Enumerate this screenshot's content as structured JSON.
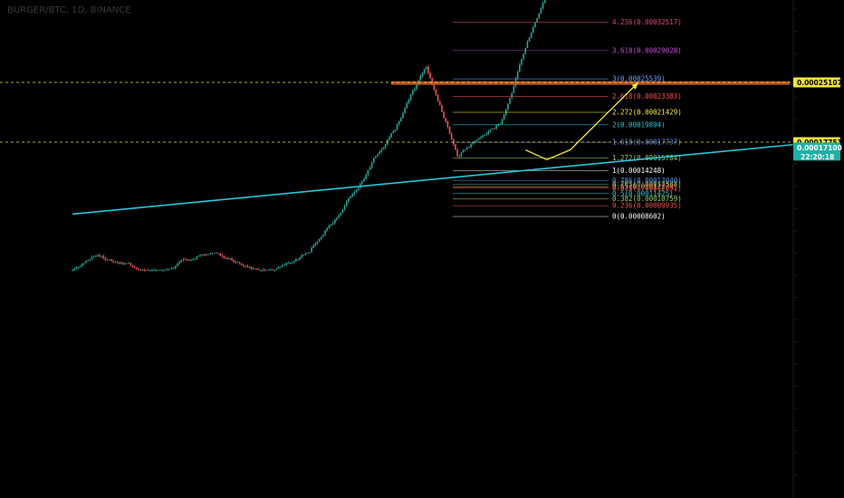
{
  "header": {
    "title": "BURGER/BTC, 1D, BINANCE"
  },
  "colors": {
    "background": "#000000",
    "trendline": "#25c7d6",
    "projection": "#f5ea3a",
    "candle_up": "#26a69a",
    "candle_down": "#ef5350",
    "resistance_zone": "#d3622a",
    "current_price_tag": "#1fb0a6",
    "price_tag": "#f2e33b"
  },
  "price_tags": [
    {
      "value": "0.00025107",
      "kind": "level"
    },
    {
      "value": "0.00017751",
      "kind": "level"
    },
    {
      "value": "0.00017100",
      "kind": "current",
      "timer": "22:20:18"
    }
  ],
  "chart_data": {
    "type": "candlestick",
    "title": "BURGER/BTC, 1D, BINANCE",
    "fib_levels": [
      {
        "ratio": "4.236",
        "price": 0.00032517,
        "label": "4.236(0.00032517)",
        "color": "#e0457a"
      },
      {
        "ratio": "3.618",
        "price": 0.00029028,
        "label": "3.618(0.00029028)",
        "color": "#c24fd6"
      },
      {
        "ratio": "3",
        "price": 0.00025539,
        "label": "3(0.00025539)",
        "color": "#6aa0ff"
      },
      {
        "ratio": "2.618",
        "price": 0.00023383,
        "label": "2.618(0.00023383)",
        "color": "#ef5350"
      },
      {
        "ratio": "2.272",
        "price": 0.00021429,
        "label": "2.272(0.00021429)",
        "color": "#f5ea3a"
      },
      {
        "ratio": "2",
        "price": 0.00019894,
        "label": "2(0.00019894)",
        "color": "#26c6da"
      },
      {
        "ratio": "1.618",
        "price": 0.00017737,
        "label": "1.618(0.00017737)",
        "color": "#5b8def"
      },
      {
        "ratio": "1.272",
        "price": 0.00015784,
        "label": "1.272(0.00015784)",
        "color": "#9ccc65"
      },
      {
        "ratio": "1",
        "price": 0.00014248,
        "label": "1(0.00014248)",
        "color": "#ffffff"
      },
      {
        "ratio": "0.786",
        "price": 0.0001304,
        "label": "0.786(0.00013040)",
        "color": "#5b8def"
      },
      {
        "ratio": "0.705",
        "price": 0.00012588,
        "label": "0.705(0.00012588)",
        "color": "#66bb6a"
      },
      {
        "ratio": "0.65",
        "price": 0.00012279,
        "label": "0.65(0.00012279)",
        "color": "#ffb74d"
      },
      {
        "ratio": "0.618",
        "price": 0.00012091,
        "label": "0.618(0.00012091)",
        "color": "#ef5350"
      },
      {
        "ratio": "0.5",
        "price": 0.00011425,
        "label": "0.5(0.00011425)",
        "color": "#26c6da"
      },
      {
        "ratio": "0.382",
        "price": 0.00010759,
        "label": "0.382(0.00010759)",
        "color": "#9ccc65"
      },
      {
        "ratio": "0.236",
        "price": 9.935e-05,
        "label": "0.236(0.00009935)",
        "color": "#ef5350"
      },
      {
        "ratio": "0",
        "price": 8.602e-05,
        "label": "0(0.00008602)",
        "color": "#ffffff"
      }
    ],
    "resistance_zone": {
      "low": 0.00025,
      "high": 0.0002525
    },
    "horizontal_levels": [
      0.00025107,
      0.00017751
    ],
    "current_price": 0.000171,
    "trendline": [
      {
        "date": "2021-05-01",
        "price": 8.9e-05
      },
      {
        "date": "2022-05-22",
        "price": 0.000178
      }
    ],
    "projection_path": [
      {
        "date": "2021-12-20",
        "price": 0.000168
      },
      {
        "date": "2021-12-31",
        "price": 0.000156
      },
      {
        "date": "2022-01-12",
        "price": 0.000168
      },
      {
        "date": "2022-02-16",
        "price": 0.00025107
      }
    ],
    "trend": {
      "start": {
        "date": "2021-09-01",
        "price": 4.2e-05
      },
      "segments": [
        {
          "days": 24,
          "drift": 3.5e-06
        },
        {
          "days": 36,
          "drift": 4.4e-06
        },
        {
          "days": 16,
          "drift": -6.5e-06
        },
        {
          "days": 22,
          "drift": 2e-06
        },
        {
          "days": 24,
          "drift": 7e-06
        }
      ]
    }
  }
}
